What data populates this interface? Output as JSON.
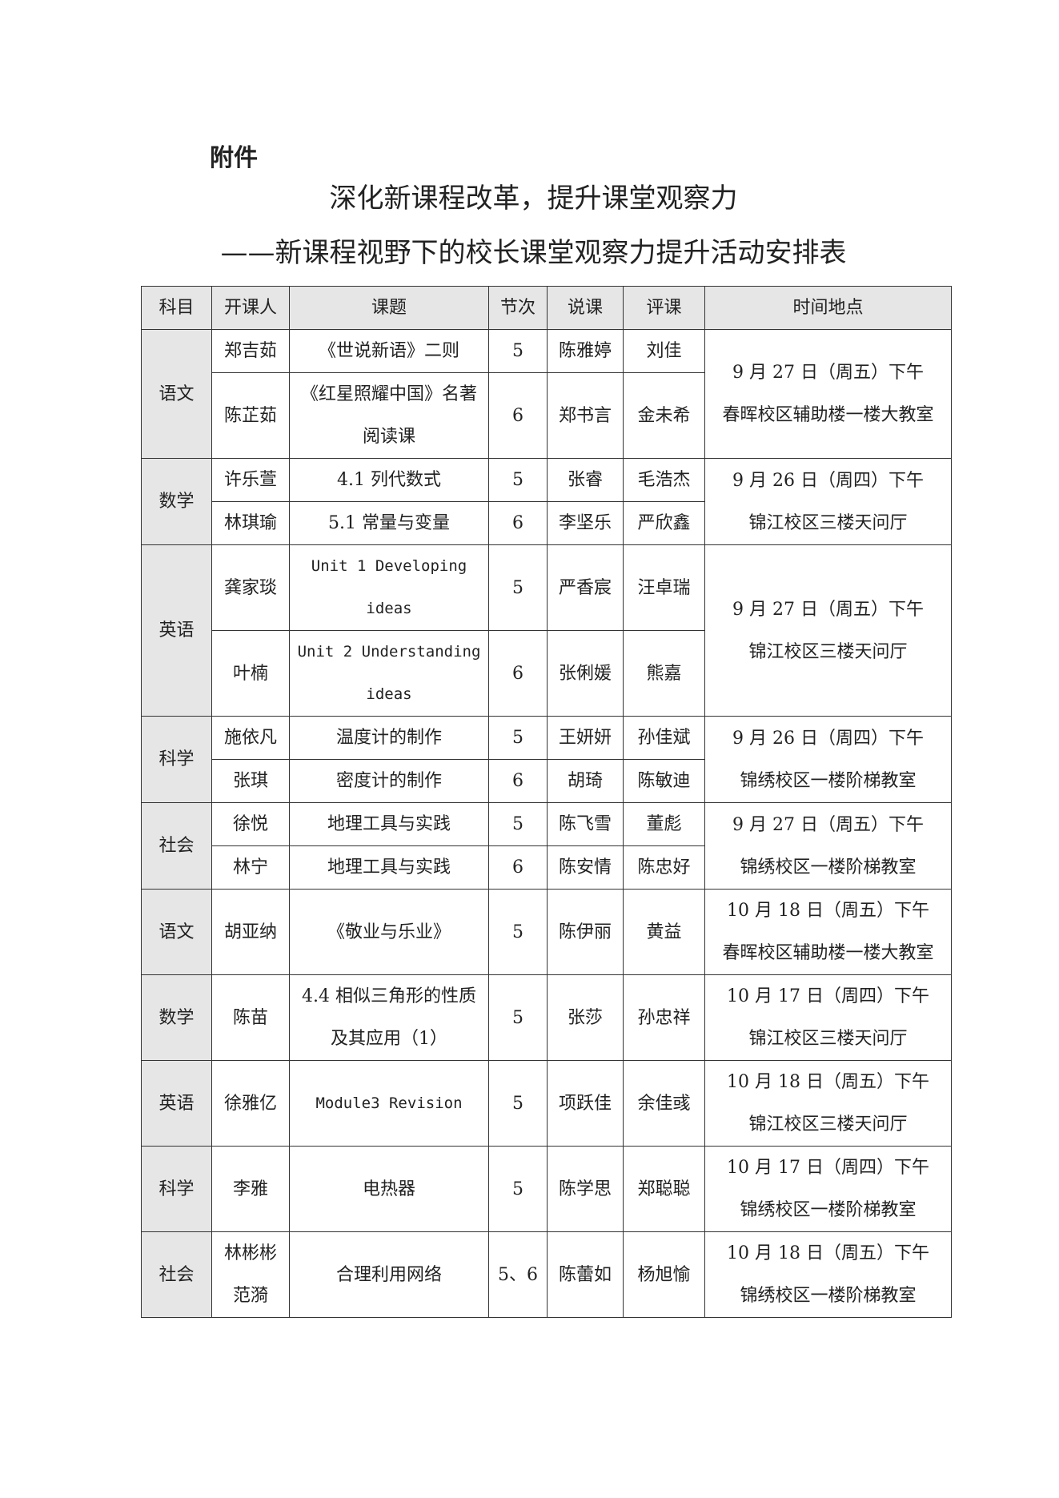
{
  "attachment_label": "附件",
  "title": "深化新课程改革，提升课堂观察力",
  "subtitle": "——新课程视野下的校长课堂观察力提升活动安排表",
  "table": {
    "headers": [
      "科目",
      "开课人",
      "课题",
      "节次",
      "说课",
      "评课",
      "时间地点"
    ],
    "groups": [
      {
        "subject": "语文",
        "time": "9 月 27 日（周五）下午",
        "place": "春晖校区辅助楼一楼大教室",
        "lessons": [
          {
            "teachers": [
              "郑吉茹"
            ],
            "topic": "《世说新语》二则",
            "period": "5",
            "speaker": "陈雅婷",
            "reviewer": "刘佳"
          },
          {
            "teachers": [
              "陈芷茹"
            ],
            "topic": "《红星照耀中国》名著阅读课",
            "period": "6",
            "speaker": "郑书言",
            "reviewer": "金未希"
          }
        ]
      },
      {
        "subject": "数学",
        "time": "9 月 26 日（周四）下午",
        "place": "锦江校区三楼天问厅",
        "lessons": [
          {
            "teachers": [
              "许乐萱"
            ],
            "topic": "4.1 列代数式",
            "period": "5",
            "speaker": "张睿",
            "reviewer": "毛浩杰"
          },
          {
            "teachers": [
              "林琪瑜"
            ],
            "topic": "5.1 常量与变量",
            "period": "6",
            "speaker": "李坚乐",
            "reviewer": "严欣鑫"
          }
        ]
      },
      {
        "subject": "英语",
        "time": "9 月 27 日（周五）下午",
        "place": "锦江校区三楼天问厅",
        "lessons": [
          {
            "teachers": [
              "龚家琰"
            ],
            "topic": "Unit 1 Developing ideas",
            "latin": true,
            "period": "5",
            "speaker": "严香宸",
            "reviewer": "汪卓瑞"
          },
          {
            "teachers": [
              "叶楠"
            ],
            "topic": "Unit 2 Understanding ideas",
            "latin": true,
            "period": "6",
            "speaker": "张俐媛",
            "reviewer": "熊嘉"
          }
        ]
      },
      {
        "subject": "科学",
        "time": "9 月 26 日（周四）下午",
        "place": "锦绣校区一楼阶梯教室",
        "lessons": [
          {
            "teachers": [
              "施依凡"
            ],
            "topic": "温度计的制作",
            "period": "5",
            "speaker": "王妍妍",
            "reviewer": "孙佳斌"
          },
          {
            "teachers": [
              "张琪"
            ],
            "topic": "密度计的制作",
            "period": "6",
            "speaker": "胡琦",
            "reviewer": "陈敏迪"
          }
        ]
      },
      {
        "subject": "社会",
        "time": "9 月 27 日（周五）下午",
        "place": "锦绣校区一楼阶梯教室",
        "lessons": [
          {
            "teachers": [
              "徐悦"
            ],
            "topic": "地理工具与实践",
            "period": "5",
            "speaker": "陈飞雪",
            "reviewer": "董彪"
          },
          {
            "teachers": [
              "林宁"
            ],
            "topic": "地理工具与实践",
            "period": "6",
            "speaker": "陈安情",
            "reviewer": "陈忠好"
          }
        ]
      },
      {
        "subject": "语文",
        "time": "10 月 18 日（周五）下午",
        "place": "春晖校区辅助楼一楼大教室",
        "lessons": [
          {
            "teachers": [
              "胡亚纳"
            ],
            "topic": "《敬业与乐业》",
            "period": "5",
            "speaker": "陈伊丽",
            "reviewer": "黄益"
          }
        ]
      },
      {
        "subject": "数学",
        "time": "10 月 17 日（周四）下午",
        "place": "锦江校区三楼天问厅",
        "lessons": [
          {
            "teachers": [
              "陈苗"
            ],
            "topic": "4.4 相似三角形的性质及其应用（1）",
            "period": "5",
            "speaker": "张莎",
            "reviewer": "孙忠祥"
          }
        ]
      },
      {
        "subject": "英语",
        "time": "10 月 18 日（周五）下午",
        "place": "锦江校区三楼天问厅",
        "lessons": [
          {
            "teachers": [
              "徐雅亿"
            ],
            "topic": "Module3 Revision",
            "latin": true,
            "period": "5",
            "speaker": "项跃佳",
            "reviewer": "余佳彧"
          }
        ]
      },
      {
        "subject": "科学",
        "time": "10 月 17 日（周四）下午",
        "place": "锦绣校区一楼阶梯教室",
        "lessons": [
          {
            "teachers": [
              "李雅"
            ],
            "topic": "电热器",
            "period": "5",
            "speaker": "陈学思",
            "reviewer": "郑聪聪"
          }
        ]
      },
      {
        "subject": "社会",
        "time": "10 月 18 日（周五）下午",
        "place": "锦绣校区一楼阶梯教室",
        "lessons": [
          {
            "teachers": [
              "林彬彬",
              "范漪"
            ],
            "topic": "合理利用网络",
            "period": "5、6",
            "speaker": "陈蕾如",
            "reviewer": "杨旭愉"
          }
        ]
      }
    ]
  }
}
